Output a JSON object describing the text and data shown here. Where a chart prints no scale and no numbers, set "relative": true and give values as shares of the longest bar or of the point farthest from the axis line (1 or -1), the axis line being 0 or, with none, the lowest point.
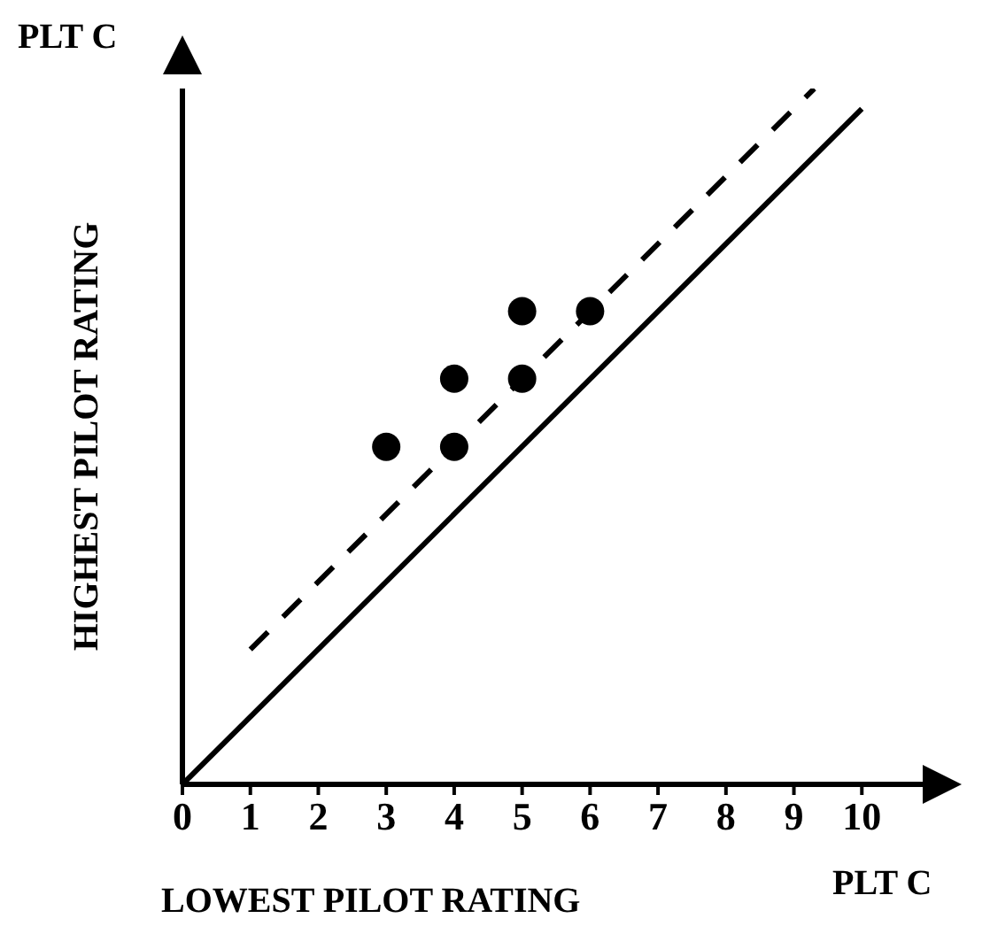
{
  "chart_data": {
    "type": "scatter",
    "xlabel": "LOWEST PILOT RATING",
    "ylabel": "HIGHEST PILOT RATING",
    "annotations": [
      "PLT C",
      "PLT C"
    ],
    "relative": true,
    "xlim": [
      0,
      11
    ],
    "xticks": [
      0,
      1,
      2,
      3,
      4,
      5,
      6,
      7,
      8,
      9,
      10
    ],
    "tick_labels": "x",
    "grid": false,
    "legend": false,
    "series": [
      {
        "color": "#000000",
        "marker": "circle",
        "x": [
          3,
          4,
          4,
          5,
          5,
          6
        ],
        "values": [
          0.485,
          0.485,
          0.583,
          0.583,
          0.68,
          0.68
        ]
      },
      {
        "type": "line",
        "color": "#000000",
        "line_style": "solid",
        "marker": "none",
        "x": [
          0,
          10
        ],
        "values": [
          0,
          0.971
        ]
      },
      {
        "type": "line",
        "color": "#000000",
        "line_style": "dashed",
        "marker": "none",
        "x": [
          1,
          9.3
        ],
        "values": [
          0.194,
          1
        ]
      }
    ]
  }
}
